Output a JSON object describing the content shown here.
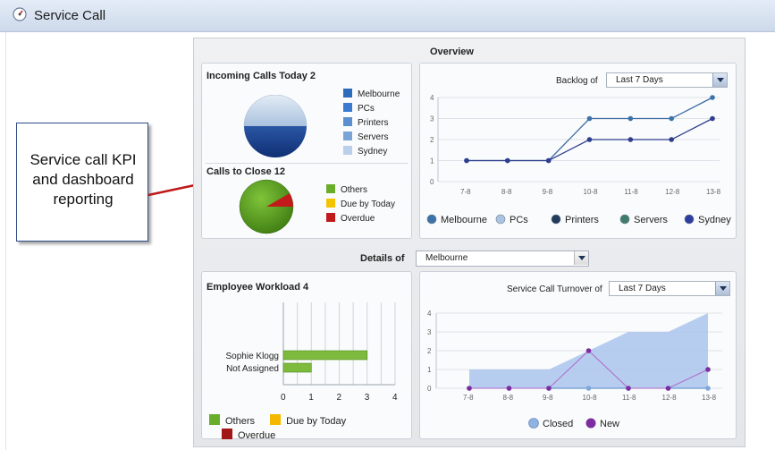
{
  "window": {
    "title": "Service Call",
    "icon": "dashboard-icon"
  },
  "callout": {
    "text": "Service call KPI and dashboard reporting"
  },
  "overview": {
    "title": "Overview",
    "incoming": {
      "title": "Incoming Calls Today 2",
      "legend": [
        {
          "label": "Melbourne",
          "color": "#2d6cbc"
        },
        {
          "label": "PCs",
          "color": "#3a7bd0"
        },
        {
          "label": "Printers",
          "color": "#5b8fd0"
        },
        {
          "label": "Servers",
          "color": "#7ba4d6"
        },
        {
          "label": "Sydney",
          "color": "#b9cfea"
        }
      ]
    },
    "close": {
      "title": "Calls to Close 12",
      "legend": [
        {
          "label": "Others",
          "color": "#6aad2b"
        },
        {
          "label": "Due by Today",
          "color": "#f5c400"
        },
        {
          "label": "Overdue",
          "color": "#c11a1a"
        }
      ]
    },
    "backlog": {
      "label": "Backlog of",
      "select_value": "Last 7 Days"
    }
  },
  "details": {
    "label": "Details of",
    "select_value": "Melbourne"
  },
  "workload": {
    "title": "Employee Workload 4",
    "legend": [
      {
        "label": "Others",
        "color": "#6aad2b"
      },
      {
        "label": "Due by Today",
        "color": "#f5b800"
      },
      {
        "label": "Overdue",
        "color": "#a31616"
      }
    ]
  },
  "turnover": {
    "label": "Service Call Turnover of",
    "select_value": "Last 7 Days"
  },
  "chart_data": [
    {
      "type": "pie",
      "title": "Incoming Calls Today 2",
      "categories": [
        "Melbourne",
        "PCs",
        "Printers",
        "Servers",
        "Sydney"
      ],
      "values": [
        1,
        0,
        0,
        0,
        1
      ]
    },
    {
      "type": "pie",
      "title": "Calls to Close 12",
      "categories": [
        "Others",
        "Due by Today",
        "Overdue"
      ],
      "values": [
        11,
        0,
        1
      ]
    },
    {
      "type": "line",
      "title": "Backlog",
      "x": [
        "7-8",
        "8-8",
        "9-8",
        "10-8",
        "11-8",
        "12-8",
        "13-8"
      ],
      "ylim": [
        0,
        4
      ],
      "yticks": [
        "0",
        "1",
        "2",
        "3",
        "4"
      ],
      "series": [
        {
          "name": "Melbourne",
          "values": [
            1,
            1,
            1,
            3,
            3,
            3,
            4
          ]
        },
        {
          "name": "Sydney",
          "values": [
            1,
            1,
            1,
            2,
            2,
            2,
            3
          ]
        }
      ],
      "legend": [
        "Melbourne",
        "PCs",
        "Printers",
        "Servers",
        "Sydney"
      ],
      "legend_colors": [
        "#3b73a8",
        "#a9c3e0",
        "#243a5a",
        "#3f7d6b",
        "#2f3d9e"
      ]
    },
    {
      "type": "bar",
      "title": "Employee Workload 4",
      "categories": [
        "Sophie Klogg",
        "Not Assigned"
      ],
      "series": [
        {
          "name": "Others",
          "values": [
            3,
            1
          ]
        }
      ],
      "xlim": [
        0,
        4
      ],
      "xticks": [
        "0",
        "1",
        "2",
        "3",
        "4"
      ]
    },
    {
      "type": "area",
      "title": "Service Call Turnover",
      "x": [
        "7-8",
        "8-8",
        "9-8",
        "10-8",
        "11-8",
        "12-8",
        "13-8"
      ],
      "ylim": [
        0,
        4
      ],
      "yticks": [
        "0",
        "1",
        "2",
        "3",
        "4"
      ],
      "series": [
        {
          "name": "Closed",
          "values": [
            0,
            0,
            0,
            0,
            0,
            0,
            0
          ]
        },
        {
          "name": "New",
          "values": [
            0,
            0,
            0,
            2,
            0,
            0,
            1
          ]
        }
      ],
      "legend": [
        "Closed",
        "New"
      ]
    }
  ]
}
